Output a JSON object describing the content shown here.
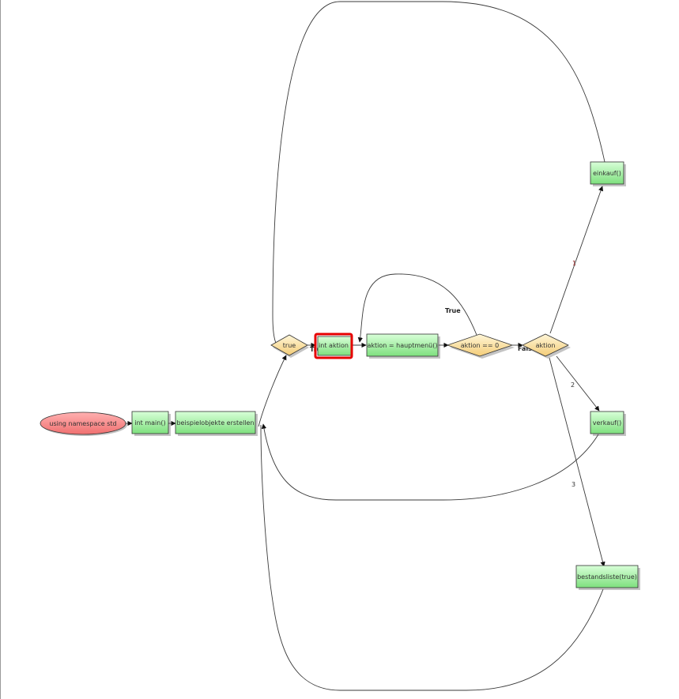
{
  "nodes": {
    "using_namespace": "using namespace std",
    "int_main": "int main()",
    "beispielobjekte": "beispielobjekte erstellen",
    "loop_true": "true",
    "int_aktion": "int aktion",
    "aktion_hauptmenue": "aktion = hauptmenü()",
    "aktion_eq_0": "aktion == 0",
    "aktion_switch": "aktion",
    "einkauf": "einkauf()",
    "verkauf": "verkauf()",
    "bestandsliste": "bestandsliste(true)"
  },
  "edge_labels": {
    "loop_true_label": "True",
    "eq0_true_label": "True",
    "eq0_false_label": "False",
    "case_1": "1",
    "case_2": "2",
    "case_3": "3"
  },
  "colors": {
    "process_fill_top": "#ccffcc",
    "process_fill_bottom": "#7fe07f",
    "decision_fill_top": "#fff3cc",
    "decision_fill_bottom": "#f5cf7a",
    "start_fill": "#ff8a8a",
    "selected_outline": "#e60000"
  }
}
